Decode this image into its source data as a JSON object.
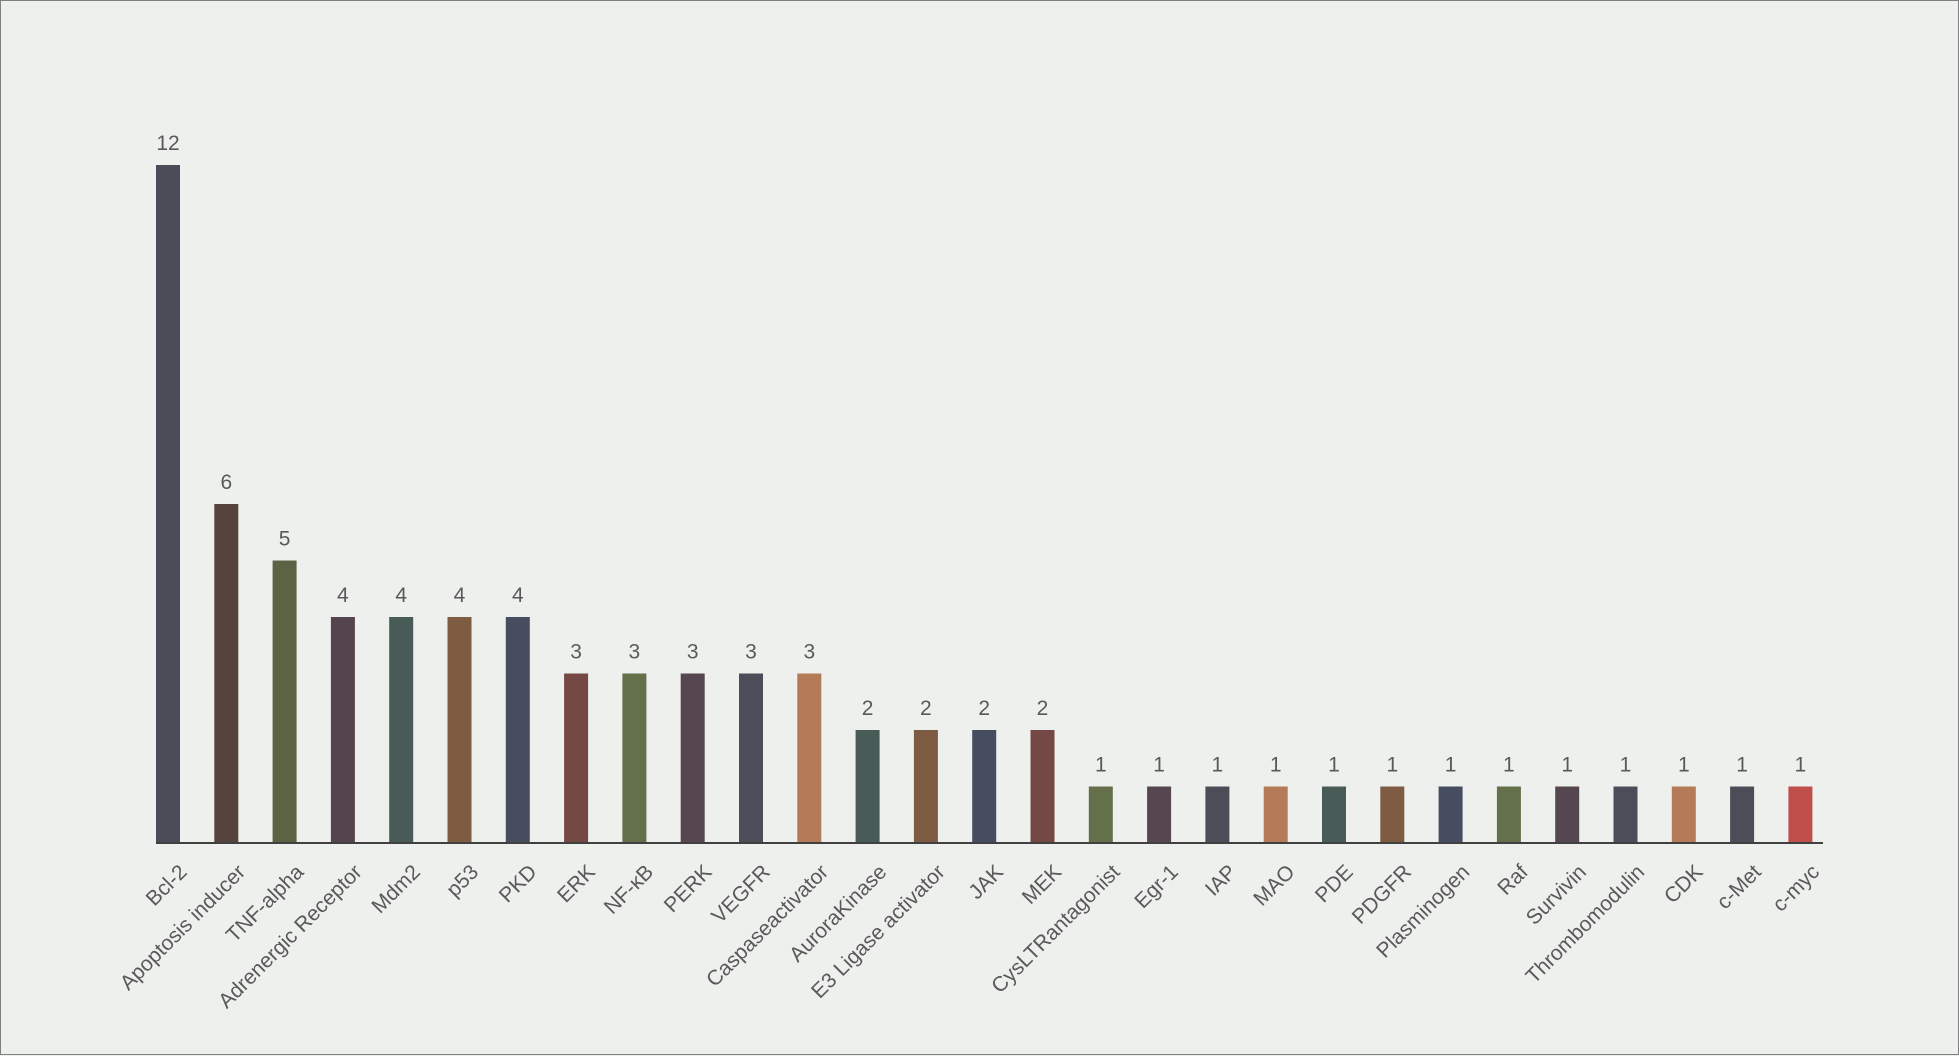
{
  "chart_data": {
    "type": "bar",
    "title": "",
    "xlabel": "",
    "ylabel": "",
    "ylim": [
      0,
      12
    ],
    "grid": false,
    "legend": "none",
    "categories": [
      "Bcl-2",
      "Apoptosis inducer",
      "TNF-alpha",
      "Adrenergic Receptor",
      "Mdm2",
      "p53",
      "PKD",
      "ERK",
      "NF-κB",
      "PERK",
      "VEGFR",
      "Caspaseactivator",
      "AuroraKinase",
      "E3 Ligase activator",
      "JAK",
      "MEK",
      "CysLTRantagonist",
      "Egr-1",
      "IAP",
      "MAO",
      "PDE",
      "PDGFR",
      "Plasminogen",
      "Raf",
      "Survivin",
      "Thrombomodulin",
      "CDK",
      "c-Met",
      "c-myc"
    ],
    "values": [
      12,
      6,
      5,
      4,
      4,
      4,
      4,
      3,
      3,
      3,
      3,
      3,
      2,
      2,
      2,
      2,
      1,
      1,
      1,
      1,
      1,
      1,
      1,
      1,
      1,
      1,
      1,
      1,
      1
    ],
    "value_labels": [
      "12",
      "6",
      "5",
      "4",
      "4",
      "4",
      "4",
      "3",
      "3",
      "3",
      "3",
      "3",
      "2",
      "2",
      "2",
      "2",
      "1",
      "1",
      "1",
      "1",
      "1",
      "1",
      "1",
      "1",
      "1",
      "1",
      "1",
      "1",
      "1"
    ],
    "bar_colors": [
      "#4a4d57",
      "#57433e",
      "#5b6345",
      "#54444c",
      "#485b57",
      "#7d5c42",
      "#464d5f",
      "#744944",
      "#637049",
      "#55464f",
      "#4b4e58",
      "#b37b58",
      "#485b56",
      "#7d5c43",
      "#464d60",
      "#744945",
      "#637049",
      "#55464f",
      "#4b4e58",
      "#b37b58",
      "#485b56",
      "#7d5c43",
      "#464d60",
      "#637049",
      "#55464f",
      "#4b4e58",
      "#b37b58",
      "#4b4e58",
      "#c04f4b"
    ],
    "axis_color": "#404040",
    "label_color": "#595959",
    "background_color": "#eef0ee"
  }
}
